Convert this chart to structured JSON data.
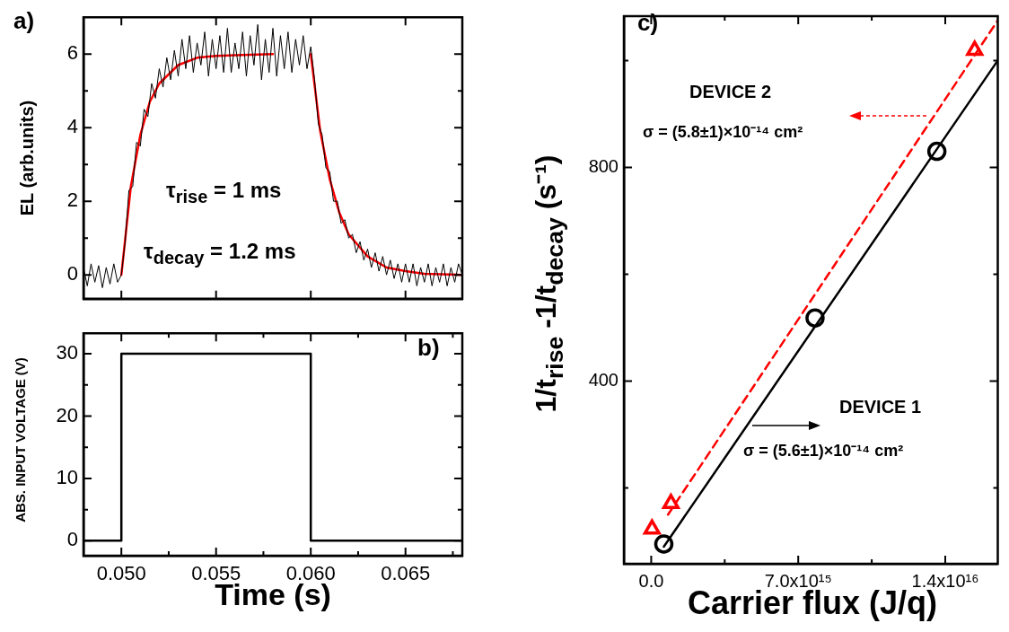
{
  "chart_data": [
    {
      "type": "line",
      "ylabel": "EL (arb.units)",
      "xlim": [
        0.048,
        0.068
      ],
      "ylim": [
        -0.65,
        7
      ],
      "xticks": [
        0.05,
        0.055,
        0.06,
        0.065
      ],
      "yticks": [
        0,
        {
          "value": 1,
          "label": null
        },
        2,
        {
          "value": 3,
          "label": null
        },
        4,
        {
          "value": 5,
          "label": null
        },
        6
      ],
      "tick_labels": "y",
      "annotations": [
        "a)",
        "τ$_{rise}$ = 1 ms",
        "τ$_{decay}$ = 1.2 ms"
      ],
      "series": [
        {
          "color": "#000000",
          "x": [
            0.048,
            0.0482,
            0.0484,
            0.0486,
            0.0488,
            0.049,
            0.0492,
            0.0494,
            0.0496,
            0.0498,
            0.05,
            0.0502,
            0.0504,
            0.0506,
            0.0508,
            0.051,
            0.0512,
            0.0514,
            0.0516,
            0.0518,
            0.052,
            0.0522,
            0.0524,
            0.0526,
            0.0528,
            0.053,
            0.0532,
            0.0534,
            0.0536,
            0.0538,
            0.054,
            0.0542,
            0.0544,
            0.0546,
            0.0548,
            0.055,
            0.0552,
            0.0554,
            0.0556,
            0.0558,
            0.056,
            0.0562,
            0.0564,
            0.0566,
            0.0568,
            0.057,
            0.0572,
            0.0574,
            0.0576,
            0.0578,
            0.058,
            0.0582,
            0.0584,
            0.0586,
            0.0588,
            0.059,
            0.0592,
            0.0594,
            0.0596,
            0.0598,
            0.06,
            0.0602,
            0.0604,
            0.0606,
            0.0608,
            0.061,
            0.0612,
            0.0614,
            0.0616,
            0.0618,
            0.062,
            0.0622,
            0.0624,
            0.0626,
            0.0628,
            0.063,
            0.0632,
            0.0634,
            0.0636,
            0.0638,
            0.064,
            0.0642,
            0.0644,
            0.0646,
            0.0648,
            0.065,
            0.0652,
            0.0654,
            0.0656,
            0.0658,
            0.066,
            0.0662,
            0.0664,
            0.0666,
            0.0668,
            0.067,
            0.0672,
            0.0674,
            0.0676,
            0.0678,
            0.068
          ],
          "values": [
            0.2,
            -0.3,
            0.3,
            -0.2,
            0.25,
            -0.35,
            0.2,
            -0.25,
            0.3,
            -0.2,
            0,
            0.9,
            2.3,
            2.4,
            3.6,
            3.5,
            4.5,
            4.3,
            5.2,
            4.8,
            5.6,
            5.1,
            5.9,
            5.3,
            6.1,
            5.4,
            6.4,
            5.6,
            6.5,
            5.5,
            6.3,
            5.7,
            6.6,
            5.4,
            6.4,
            5.6,
            6.5,
            5.5,
            6.7,
            5.5,
            6.3,
            5.6,
            6.6,
            5.4,
            6.5,
            5.7,
            6.8,
            5.3,
            6.4,
            5.5,
            6.7,
            5.4,
            6.5,
            5.6,
            6.6,
            5.5,
            6.4,
            5.7,
            6.5,
            5.6,
            6.2,
            5.3,
            4.1,
            3.8,
            2.9,
            2.8,
            2,
            2,
            1.4,
            1.5,
            1,
            1.1,
            0.6,
            0.9,
            0.4,
            0.7,
            0.2,
            0.6,
            0.1,
            0.5,
            0,
            0.4,
            -0.1,
            0.3,
            -0.2,
            0.3,
            -0.2,
            0.3,
            -0.3,
            0.2,
            -0.2,
            0.3,
            -0.3,
            0.2,
            -0.2,
            0.3,
            -0.3,
            0.2,
            -0.2,
            0.3,
            0
          ]
        },
        {
          "color": "#ff0000",
          "x": [
            0.05,
            0.0505,
            0.051,
            0.0515,
            0.052,
            0.053,
            0.054,
            0.055,
            0.058,
            0.059,
            0.06,
            0.0605,
            0.061,
            0.0615,
            0.062,
            0.063,
            0.064,
            0.065,
            0.066,
            0.068
          ],
          "values": [
            0,
            2.4,
            3.8,
            4.7,
            5.2,
            5.7,
            5.9,
            5.95,
            6,
            null,
            6,
            3.9,
            2.6,
            1.7,
            1.1,
            0.5,
            0.2,
            0.1,
            0.03,
            0
          ]
        }
      ]
    },
    {
      "type": "step",
      "xlabel": "Time (s)",
      "ylabel": "ABS. INPUT VOLTAGE (V)",
      "xlim": [
        0.048,
        0.068
      ],
      "ylim": [
        -2.4,
        33.3
      ],
      "xticks": [
        {
          "value": 0.05,
          "label": "0.050"
        },
        {
          "value": 0.0525,
          "label": null
        },
        0.055,
        {
          "value": 0.0575,
          "label": null
        },
        {
          "value": 0.06,
          "label": "0.060"
        },
        {
          "value": 0.0625,
          "label": null
        },
        0.065,
        {
          "value": 0.0675,
          "label": null
        }
      ],
      "yticks": [
        0,
        {
          "value": 5,
          "label": null
        },
        10,
        {
          "value": 15,
          "label": null
        },
        20,
        {
          "value": 25,
          "label": null
        },
        30
      ],
      "annotations": [
        "b)"
      ],
      "series": [
        {
          "color": "#000000",
          "x": [
            0.048,
            0.05,
            0.06,
            0.068
          ],
          "values": [
            0,
            30,
            0,
            0
          ]
        }
      ]
    },
    {
      "type": "scatter",
      "xlabel": "Carrier flux (J/q)",
      "ylabel": "1/t$_{rise}$ -1/t$_{decay}$ (s⁻¹)",
      "xlim": [
        -1300000000000000.0,
        1.65e+16
      ],
      "ylim": [
        58,
        1083
      ],
      "xticks": [
        {
          "value": 0,
          "label": "0.0"
        },
        {
          "value": 3500000000000000.0,
          "label": null
        },
        {
          "value": 7000000000000000.0,
          "label": "7.0x10¹⁵"
        },
        {
          "value": 1.05e+16,
          "label": null
        },
        {
          "value": 1.4e+16,
          "label": "1.4x10¹⁶"
        }
      ],
      "yticks": [
        {
          "value": 200,
          "label": null
        },
        400,
        {
          "value": 600,
          "label": null
        },
        800,
        {
          "value": 1000,
          "label": null
        }
      ],
      "annotations": [
        "c)",
        "DEVICE 2",
        "σ = (5.8±1)×10⁻¹⁴ cm²",
        "DEVICE 1",
        "σ = (5.6±1)×10⁻¹⁴ cm²"
      ],
      "series": [
        {
          "type": "line",
          "color": "#000000",
          "x": [
            600000000000000.0,
            1.65e+16
          ],
          "values": [
            90,
            1000
          ],
          "marker": "none",
          "line_style": "solid"
        },
        {
          "type": "line",
          "color": "#ff0000",
          "x": [
            800000000000000.0,
            1.65e+16
          ],
          "values": [
            150,
            1075
          ],
          "marker": "none",
          "line_style": "dashed"
        },
        {
          "color": "#000000",
          "x": [
            600000000000000.0,
            7800000000000000.0,
            1.36e+16
          ],
          "values": [
            95,
            518,
            830
          ],
          "marker": "circle"
        },
        {
          "color": "#ff0000",
          "x": [
            40000000000000.0,
            940000000000000.0,
            1.54e+16
          ],
          "values": [
            123,
            171,
            1019
          ],
          "marker": "triangle"
        }
      ]
    }
  ]
}
